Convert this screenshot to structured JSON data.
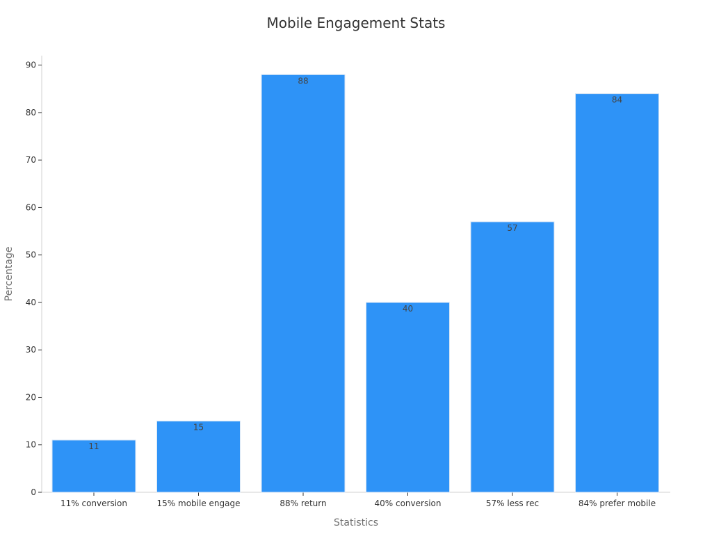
{
  "chart_data": {
    "type": "bar",
    "title": "Mobile Engagement Stats",
    "xlabel": "Statistics",
    "ylabel": "Percentage",
    "categories": [
      "11% conversion",
      "15% mobile engage",
      "88% return",
      "40% conversion",
      "57% less rec",
      "84% prefer mobile"
    ],
    "values": [
      11,
      15,
      88,
      40,
      57,
      84
    ],
    "ylim": [
      0,
      92
    ],
    "yticks": [
      0,
      10,
      20,
      30,
      40,
      50,
      60,
      70,
      80,
      90
    ],
    "grid": false,
    "bar_color": "#2e93f7",
    "bar_edge_color": "#d8e6f5"
  }
}
